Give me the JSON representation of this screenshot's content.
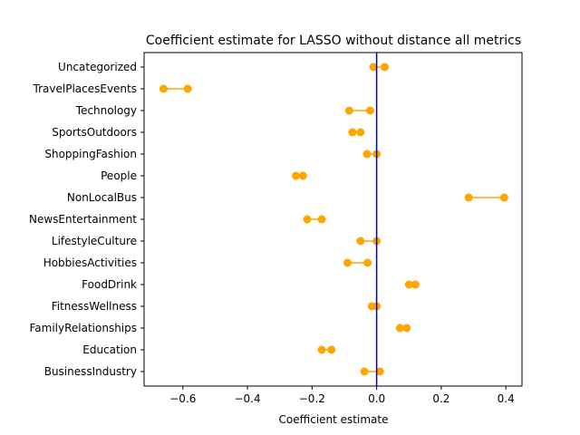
{
  "chart_data": {
    "type": "dumbbell",
    "title": "Coefficient estimate for LASSO without distance all metrics",
    "xlabel": "Coefficient estimate",
    "ylabel": "",
    "xlim": [
      -0.72,
      0.45
    ],
    "xticks": [
      -0.6,
      -0.4,
      -0.2,
      0.0,
      0.2,
      0.4
    ],
    "xtick_labels": [
      "−0.6",
      "−0.4",
      "−0.2",
      "0.0",
      "0.2",
      "0.4"
    ],
    "grid": false,
    "reference_line": {
      "x": 0.0,
      "color": "#0000cc"
    },
    "marker_color": "#ffa500",
    "categories": [
      "Uncategorized",
      "TravelPlacesEvents",
      "Technology",
      "SportsOutdoors",
      "ShoppingFashion",
      "People",
      "NonLocalBus",
      "NewsEntertainment",
      "LifestyleCulture",
      "HobbiesActivities",
      "FoodDrink",
      "FitnessWellness",
      "FamilyRelationships",
      "Education",
      "BusinessIndustry"
    ],
    "intervals": [
      [
        -0.01,
        0.025
      ],
      [
        -0.66,
        -0.585
      ],
      [
        -0.085,
        -0.02
      ],
      [
        -0.075,
        -0.05
      ],
      [
        -0.03,
        0.0
      ],
      [
        -0.25,
        -0.228
      ],
      [
        0.285,
        0.395
      ],
      [
        -0.215,
        -0.17
      ],
      [
        -0.05,
        0.0
      ],
      [
        -0.09,
        -0.028
      ],
      [
        0.1,
        0.12
      ],
      [
        -0.015,
        0.0
      ],
      [
        0.072,
        0.093
      ],
      [
        -0.17,
        -0.14
      ],
      [
        -0.038,
        0.01
      ]
    ]
  }
}
